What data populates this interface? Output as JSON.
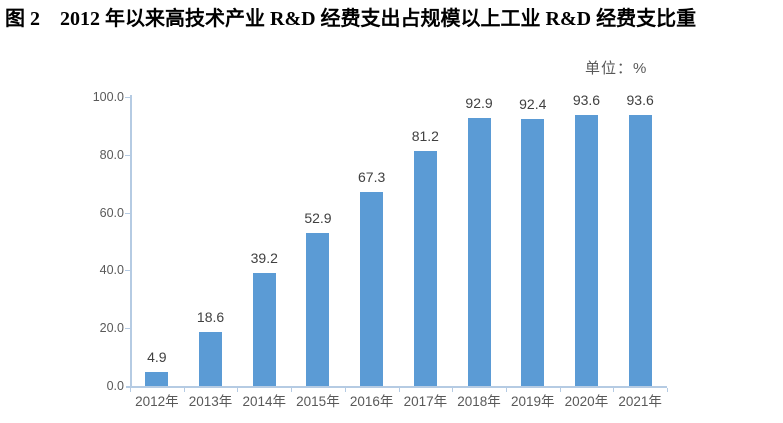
{
  "title": "图 2　2012 年以来高技术产业 R&D 经费支出占规模以上工业 R&D 经费支比重",
  "unit_label": "单位：%",
  "colors": {
    "bar": "#5B9BD5",
    "axis": "#B5CBE3",
    "axis_text": "#595959",
    "value_text": "#404040",
    "title_text": "#000000"
  },
  "chart_data": {
    "type": "bar",
    "title": "图 2　2012 年以来高技术产业 R&D 经费支出占规模以上工业 R&D 经费支比重",
    "unit": "单位：%",
    "categories": [
      "2012年",
      "2013年",
      "2014年",
      "2015年",
      "2016年",
      "2017年",
      "2018年",
      "2019年",
      "2020年",
      "2021年"
    ],
    "values": [
      4.9,
      18.6,
      39.2,
      52.9,
      67.3,
      81.2,
      92.9,
      92.4,
      93.6,
      93.6
    ],
    "xlabel": "",
    "ylabel": "",
    "ylim": [
      0,
      100
    ],
    "y_ticks": [
      "0.0",
      "20.0",
      "40.0",
      "60.0",
      "80.0",
      "100.0"
    ],
    "grid": false,
    "legend": "none",
    "data_labels": true
  }
}
